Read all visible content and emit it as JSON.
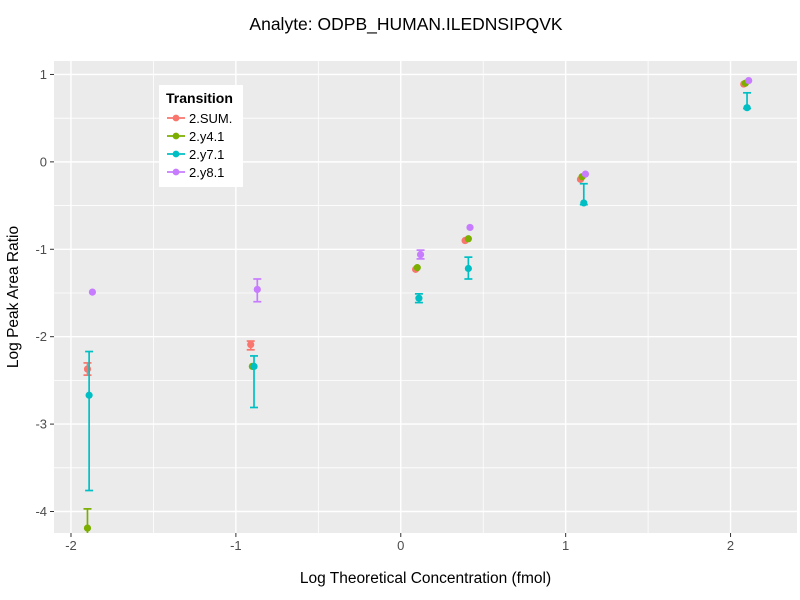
{
  "figure": {
    "title": "Analyte: ODPB_HUMAN.ILEDNSIPQVK",
    "x_axis_label": "Log Theoretical Concentration (fmol)",
    "y_axis_label": "Log Peak Area Ratio"
  },
  "legend": {
    "title": "Transition",
    "items": [
      {
        "label": "2.SUM.",
        "color": "#F8766D"
      },
      {
        "label": "2.y4.1",
        "color": "#7CAE00"
      },
      {
        "label": "2.y7.1",
        "color": "#00BFC4"
      },
      {
        "label": "2.y8.1",
        "color": "#C77CFF"
      }
    ]
  },
  "chart_data": {
    "type": "scatter",
    "title": "Analyte: ODPB_HUMAN.ILEDNSIPQVK",
    "xlabel": "Log Theoretical Concentration (fmol)",
    "ylabel": "Log Peak Area Ratio",
    "xlim": [
      -2.103,
      2.403
    ],
    "ylim": [
      -4.246,
      1.154
    ],
    "x_ticks": [
      -2,
      -1,
      0,
      1,
      2
    ],
    "y_ticks": [
      1,
      0,
      -1,
      -2,
      -3,
      -4
    ],
    "x_minor_ticks": [
      -1.5,
      -0.5,
      0.5,
      1.5
    ],
    "y_minor_ticks": [
      0.5,
      -0.5,
      -1.5,
      -2.5,
      -3.5
    ],
    "grid": true,
    "panel_background": "#EBEBEB",
    "grid_color": "#FFFFFF",
    "tick_label_color": "#4d4d4d",
    "legend_position": "inside-top-left",
    "series": [
      {
        "name": "2.SUM.",
        "color": "#F8766D",
        "points": [
          {
            "x": -1.9,
            "y": -2.37,
            "ymin": -2.44,
            "ymax": -2.3
          },
          {
            "x": -0.91,
            "y": -2.09,
            "ymin": -2.15,
            "ymax": -2.05
          },
          {
            "x": 0.09,
            "y": -1.23
          },
          {
            "x": 0.39,
            "y": -0.9
          },
          {
            "x": 1.09,
            "y": -0.2
          },
          {
            "x": 2.08,
            "y": 0.89
          }
        ]
      },
      {
        "name": "2.y4.1",
        "color": "#7CAE00",
        "points": [
          {
            "x": -1.9,
            "y": -4.19,
            "ymin": -4.3,
            "ymax": -3.97
          },
          {
            "x": -0.9,
            "y": -2.34
          },
          {
            "x": 0.1,
            "y": -1.21
          },
          {
            "x": 0.41,
            "y": -0.88
          },
          {
            "x": 1.1,
            "y": -0.17
          },
          {
            "x": 2.09,
            "y": 0.9
          }
        ]
      },
      {
        "name": "2.y7.1",
        "color": "#00BFC4",
        "points": [
          {
            "x": -1.89,
            "y": -2.67,
            "ymin": -3.76,
            "ymax": -2.17
          },
          {
            "x": -0.89,
            "y": -2.34,
            "ymin": -2.81,
            "ymax": -2.22
          },
          {
            "x": 0.11,
            "y": -1.56,
            "ymin": -1.61,
            "ymax": -1.51
          },
          {
            "x": 0.41,
            "y": -1.22,
            "ymin": -1.34,
            "ymax": -1.09
          },
          {
            "x": 1.11,
            "y": -0.47,
            "ymin": -0.49,
            "ymax": -0.25
          },
          {
            "x": 2.1,
            "y": 0.62,
            "ymin": 0.61,
            "ymax": 0.79
          }
        ]
      },
      {
        "name": "2.y8.1",
        "color": "#C77CFF",
        "points": [
          {
            "x": -1.87,
            "y": -1.49
          },
          {
            "x": -0.87,
            "y": -1.46,
            "ymin": -1.6,
            "ymax": -1.34
          },
          {
            "x": 0.12,
            "y": -1.06,
            "ymin": -1.11,
            "ymax": -1.01
          },
          {
            "x": 0.42,
            "y": -0.75
          },
          {
            "x": 1.12,
            "y": -0.14
          },
          {
            "x": 2.11,
            "y": 0.93
          }
        ]
      }
    ]
  }
}
